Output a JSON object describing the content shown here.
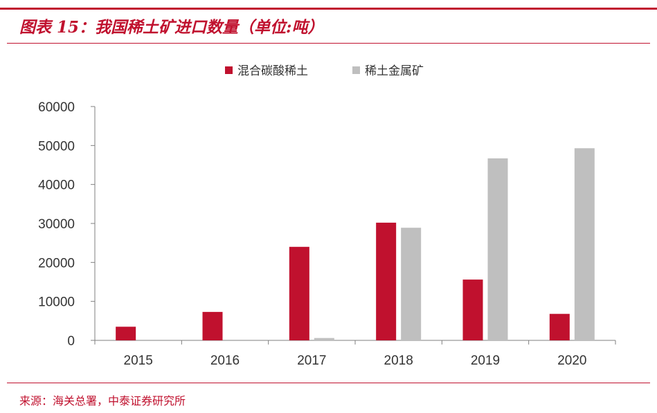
{
  "header": {
    "title": "图表 15：我国稀土矿进口数量（单位:吨）"
  },
  "footer": {
    "source": "来源：海关总署，中泰证券研究所"
  },
  "colors": {
    "accent": "#c0112e",
    "series_1": "#c0112e",
    "series_2": "#bfbfbf"
  },
  "chart_data": {
    "type": "bar",
    "categories": [
      "2015",
      "2016",
      "2017",
      "2018",
      "2019",
      "2020"
    ],
    "series": [
      {
        "name": "混合碳酸稀土",
        "values": [
          3500,
          7300,
          24000,
          30200,
          15600,
          6800
        ]
      },
      {
        "name": "稀土金属矿",
        "values": [
          0,
          0,
          600,
          28900,
          46700,
          49300
        ]
      }
    ],
    "y_ticks": [
      "0",
      "10000",
      "20000",
      "30000",
      "40000",
      "50000",
      "60000"
    ],
    "ylim": [
      0,
      60000
    ],
    "title": "",
    "xlabel": "",
    "ylabel": "",
    "legend_position": "top-center",
    "grid": false
  }
}
